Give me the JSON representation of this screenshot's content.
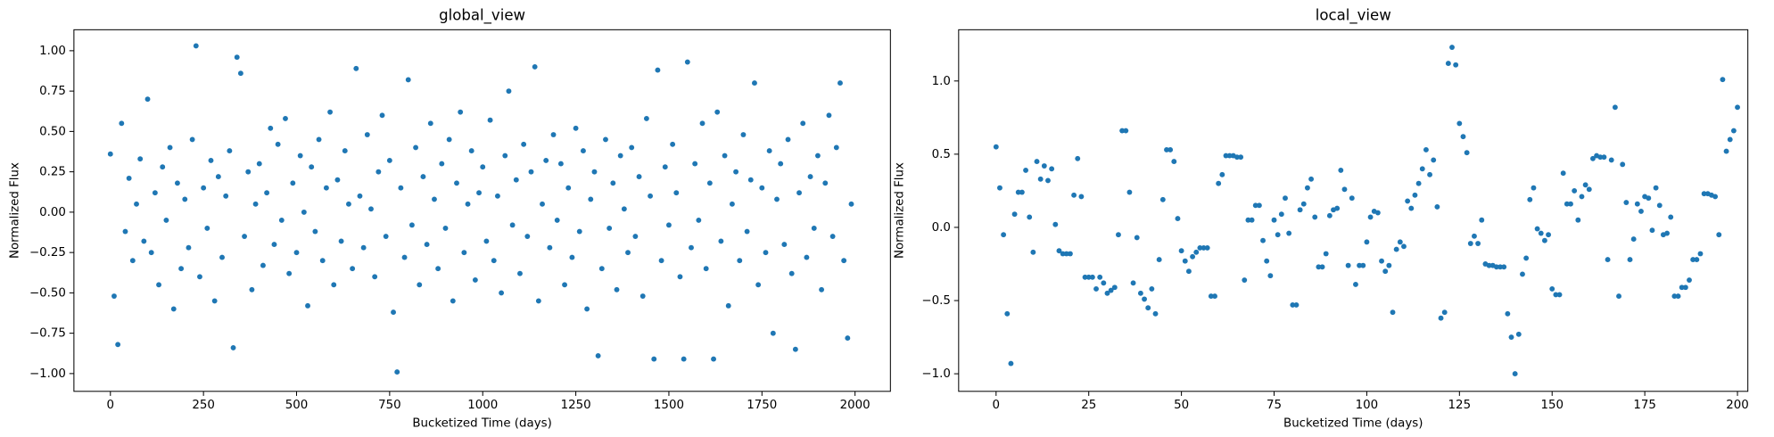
{
  "chart_data": [
    {
      "type": "scatter",
      "title": "global_view",
      "x_label": "Bucketized Time (days)",
      "y_label": "Normalized Flux",
      "color": "#1f77b4",
      "x": [
        0,
        10,
        20,
        30,
        40,
        50,
        60,
        70,
        80,
        90,
        100,
        110,
        120,
        130,
        140,
        150,
        160,
        170,
        180,
        190,
        200,
        210,
        220,
        230,
        240,
        250,
        260,
        270,
        280,
        290,
        300,
        310,
        320,
        330,
        340,
        350,
        360,
        370,
        380,
        390,
        400,
        410,
        420,
        430,
        440,
        450,
        460,
        470,
        480,
        490,
        500,
        510,
        520,
        530,
        540,
        550,
        560,
        570,
        580,
        590,
        600,
        610,
        620,
        630,
        640,
        650,
        660,
        670,
        680,
        690,
        700,
        710,
        720,
        730,
        740,
        750,
        760,
        770,
        780,
        790,
        800,
        810,
        820,
        830,
        840,
        850,
        860,
        870,
        880,
        890,
        900,
        910,
        920,
        930,
        940,
        950,
        960,
        970,
        980,
        990,
        1000,
        1010,
        1020,
        1030,
        1040,
        1050,
        1060,
        1070,
        1080,
        1090,
        1100,
        1110,
        1120,
        1130,
        1140,
        1150,
        1160,
        1170,
        1180,
        1190,
        1200,
        1210,
        1220,
        1230,
        1240,
        1250,
        1260,
        1270,
        1280,
        1290,
        1300,
        1310,
        1320,
        1330,
        1340,
        1350,
        1360,
        1370,
        1380,
        1390,
        1400,
        1410,
        1420,
        1430,
        1440,
        1450,
        1460,
        1470,
        1480,
        1490,
        1500,
        1510,
        1520,
        1530,
        1540,
        1550,
        1560,
        1570,
        1580,
        1590,
        1600,
        1610,
        1620,
        1630,
        1640,
        1650,
        1660,
        1670,
        1680,
        1690,
        1700,
        1710,
        1720,
        1730,
        1740,
        1750,
        1760,
        1770,
        1780,
        1790,
        1800,
        1810,
        1820,
        1830,
        1840,
        1850,
        1860,
        1870,
        1880,
        1890,
        1900,
        1910,
        1920,
        1930,
        1940,
        1950,
        1960,
        1970,
        1980,
        1990
      ],
      "values": [
        0.36,
        -0.52,
        -0.82,
        0.55,
        -0.12,
        0.21,
        -0.3,
        0.05,
        0.33,
        -0.18,
        0.7,
        -0.25,
        0.12,
        -0.45,
        0.28,
        -0.05,
        0.4,
        -0.6,
        0.18,
        -0.35,
        0.08,
        -0.22,
        0.45,
        1.03,
        -0.4,
        0.15,
        -0.1,
        0.32,
        -0.55,
        0.22,
        -0.28,
        0.1,
        0.38,
        -0.84,
        0.96,
        0.86,
        -0.15,
        0.25,
        -0.48,
        0.05,
        0.3,
        -0.33,
        0.12,
        0.52,
        -0.2,
        0.42,
        -0.05,
        0.58,
        -0.38,
        0.18,
        -0.25,
        0.35,
        0.0,
        -0.58,
        0.28,
        -0.12,
        0.45,
        -0.3,
        0.15,
        0.62,
        -0.45,
        0.2,
        -0.18,
        0.38,
        0.05,
        -0.35,
        0.89,
        0.1,
        -0.22,
        0.48,
        0.02,
        -0.4,
        0.25,
        0.6,
        -0.15,
        0.32,
        -0.62,
        -0.99,
        0.15,
        -0.28,
        0.82,
        -0.08,
        0.4,
        -0.45,
        0.22,
        -0.2,
        0.55,
        0.08,
        -0.35,
        0.3,
        -0.1,
        0.45,
        -0.55,
        0.18,
        0.62,
        -0.25,
        0.05,
        0.38,
        -0.42,
        0.12,
        0.28,
        -0.18,
        0.57,
        -0.3,
        0.1,
        -0.5,
        0.35,
        0.75,
        -0.08,
        0.2,
        -0.38,
        0.42,
        -0.15,
        0.25,
        0.9,
        -0.55,
        0.05,
        0.32,
        -0.22,
        0.48,
        -0.05,
        0.3,
        -0.45,
        0.15,
        -0.28,
        0.52,
        -0.12,
        0.38,
        -0.6,
        0.08,
        0.25,
        -0.89,
        -0.35,
        0.45,
        -0.1,
        0.18,
        -0.48,
        0.35,
        0.02,
        -0.25,
        0.4,
        -0.15,
        0.22,
        -0.52,
        0.58,
        0.1,
        -0.91,
        0.88,
        -0.3,
        0.28,
        -0.08,
        0.42,
        0.12,
        -0.4,
        -0.91,
        0.93,
        -0.22,
        0.3,
        -0.05,
        0.55,
        -0.35,
        0.18,
        -0.91,
        0.62,
        -0.18,
        0.35,
        -0.58,
        0.05,
        0.25,
        -0.3,
        0.48,
        -0.12,
        0.2,
        0.8,
        -0.45,
        0.15,
        -0.25,
        0.38,
        -0.75,
        0.08,
        0.3,
        -0.2,
        0.45,
        -0.38,
        -0.85,
        0.12,
        0.55,
        -0.28,
        0.22,
        -0.1,
        0.35,
        -0.48,
        0.18,
        0.6,
        -0.15,
        0.4,
        0.8,
        -0.3,
        -0.78,
        0.05
      ],
      "xlim": [
        -98,
        2095
      ],
      "ylim": [
        -1.11,
        1.13
      ],
      "xticks": [
        0,
        250,
        500,
        750,
        1000,
        1250,
        1500,
        1750,
        2000
      ],
      "yticks": [
        {
          "value": -1,
          "label": "−1.00"
        },
        {
          "value": -0.75,
          "label": "−0.75"
        },
        {
          "value": -0.5,
          "label": "−0.50"
        },
        {
          "value": -0.25,
          "label": "−0.25"
        },
        {
          "value": 0,
          "label": "0.00"
        },
        {
          "value": 0.25,
          "label": "0.25"
        },
        {
          "value": 0.5,
          "label": "0.50"
        },
        {
          "value": 0.75,
          "label": "0.75"
        },
        {
          "value": 1,
          "label": "1.00"
        }
      ]
    },
    {
      "type": "scatter",
      "title": "local_view",
      "x_label": "Bucketized Time (days)",
      "y_label": "Normalized Flux",
      "color": "#1f77b4",
      "x": [
        0,
        1,
        2,
        3,
        4,
        5,
        6,
        7,
        8,
        9,
        10,
        11,
        12,
        13,
        14,
        15,
        16,
        17,
        18,
        19,
        20,
        21,
        22,
        23,
        24,
        25,
        26,
        27,
        28,
        29,
        30,
        31,
        32,
        33,
        34,
        35,
        36,
        37,
        38,
        39,
        40,
        41,
        42,
        43,
        44,
        45,
        46,
        47,
        48,
        49,
        50,
        51,
        52,
        53,
        54,
        55,
        56,
        57,
        58,
        59,
        60,
        61,
        62,
        63,
        64,
        65,
        66,
        67,
        68,
        69,
        70,
        71,
        72,
        73,
        74,
        75,
        76,
        77,
        78,
        79,
        80,
        81,
        82,
        83,
        84,
        85,
        86,
        87,
        88,
        89,
        90,
        91,
        92,
        93,
        94,
        95,
        96,
        97,
        98,
        99,
        100,
        101,
        102,
        103,
        104,
        105,
        106,
        107,
        108,
        109,
        110,
        111,
        112,
        113,
        114,
        115,
        116,
        117,
        118,
        119,
        120,
        121,
        122,
        123,
        124,
        125,
        126,
        127,
        128,
        129,
        130,
        131,
        132,
        133,
        134,
        135,
        136,
        137,
        138,
        139,
        140,
        141,
        142,
        143,
        144,
        145,
        146,
        147,
        148,
        149,
        150,
        151,
        152,
        153,
        154,
        155,
        156,
        157,
        158,
        159,
        160,
        161,
        162,
        163,
        164,
        165,
        166,
        167,
        168,
        169,
        170,
        171,
        172,
        173,
        174,
        175,
        176,
        177,
        178,
        179,
        180,
        181,
        182,
        183,
        184,
        185,
        186,
        187,
        188,
        189,
        190,
        191,
        192,
        193,
        194,
        195,
        196,
        197,
        198,
        199,
        200
      ],
      "values": [
        0.55,
        0.27,
        -0.05,
        -0.59,
        -0.93,
        0.09,
        0.24,
        0.24,
        0.39,
        0.07,
        -0.17,
        0.45,
        0.33,
        0.42,
        0.32,
        0.4,
        0.02,
        -0.16,
        -0.18,
        -0.18,
        -0.18,
        0.22,
        0.47,
        0.21,
        -0.34,
        -0.34,
        -0.34,
        -0.42,
        -0.34,
        -0.38,
        -0.45,
        -0.43,
        -0.41,
        -0.05,
        0.66,
        0.66,
        0.24,
        -0.38,
        -0.07,
        -0.45,
        -0.49,
        -0.55,
        -0.42,
        -0.59,
        -0.22,
        0.19,
        0.53,
        0.53,
        0.45,
        0.06,
        -0.16,
        -0.23,
        -0.3,
        -0.2,
        -0.17,
        -0.14,
        -0.14,
        -0.14,
        -0.47,
        -0.47,
        0.3,
        0.36,
        0.49,
        0.49,
        0.49,
        0.48,
        0.48,
        -0.36,
        0.05,
        0.05,
        0.15,
        0.15,
        -0.09,
        -0.23,
        -0.33,
        0.05,
        -0.05,
        0.09,
        0.2,
        -0.04,
        -0.53,
        -0.53,
        0.12,
        0.16,
        0.27,
        0.33,
        0.07,
        -0.27,
        -0.27,
        -0.18,
        0.08,
        0.12,
        0.13,
        0.39,
        0.26,
        -0.26,
        0.2,
        -0.39,
        -0.26,
        -0.26,
        -0.1,
        0.07,
        0.11,
        0.1,
        -0.23,
        -0.3,
        -0.26,
        -0.58,
        -0.15,
        -0.1,
        -0.13,
        0.18,
        0.13,
        0.22,
        0.3,
        0.4,
        0.53,
        0.36,
        0.46,
        0.14,
        -0.62,
        -0.58,
        1.12,
        1.23,
        1.11,
        0.71,
        0.62,
        0.51,
        -0.11,
        -0.06,
        -0.11,
        0.05,
        -0.25,
        -0.26,
        -0.26,
        -0.27,
        -0.27,
        -0.27,
        -0.59,
        -0.75,
        -1.0,
        -0.73,
        -0.32,
        -0.21,
        0.19,
        0.27,
        -0.01,
        -0.04,
        -0.09,
        -0.05,
        -0.42,
        -0.46,
        -0.46,
        0.37,
        0.16,
        0.16,
        0.25,
        0.05,
        0.21,
        0.29,
        0.26,
        0.47,
        0.49,
        0.48,
        0.48,
        -0.22,
        0.46,
        0.82,
        -0.47,
        0.43,
        0.17,
        -0.22,
        -0.08,
        0.16,
        0.11,
        0.21,
        0.2,
        -0.02,
        0.27,
        0.15,
        -0.05,
        -0.04,
        0.07,
        -0.47,
        -0.47,
        -0.41,
        -0.41,
        -0.36,
        -0.22,
        -0.22,
        -0.18,
        0.23,
        0.23,
        0.22,
        0.21,
        -0.05,
        1.01,
        0.52,
        0.6,
        0.66,
        0.82
      ],
      "xlim": [
        -10.1,
        202.8
      ],
      "ylim": [
        -1.12,
        1.35
      ],
      "xticks": [
        0,
        25,
        50,
        75,
        100,
        125,
        150,
        175,
        200
      ],
      "yticks": [
        {
          "value": -1,
          "label": "−1.0"
        },
        {
          "value": -0.5,
          "label": "−0.5"
        },
        {
          "value": 0,
          "label": "0.0"
        },
        {
          "value": 0.5,
          "label": "0.5"
        },
        {
          "value": 1,
          "label": "1.0"
        }
      ]
    }
  ]
}
